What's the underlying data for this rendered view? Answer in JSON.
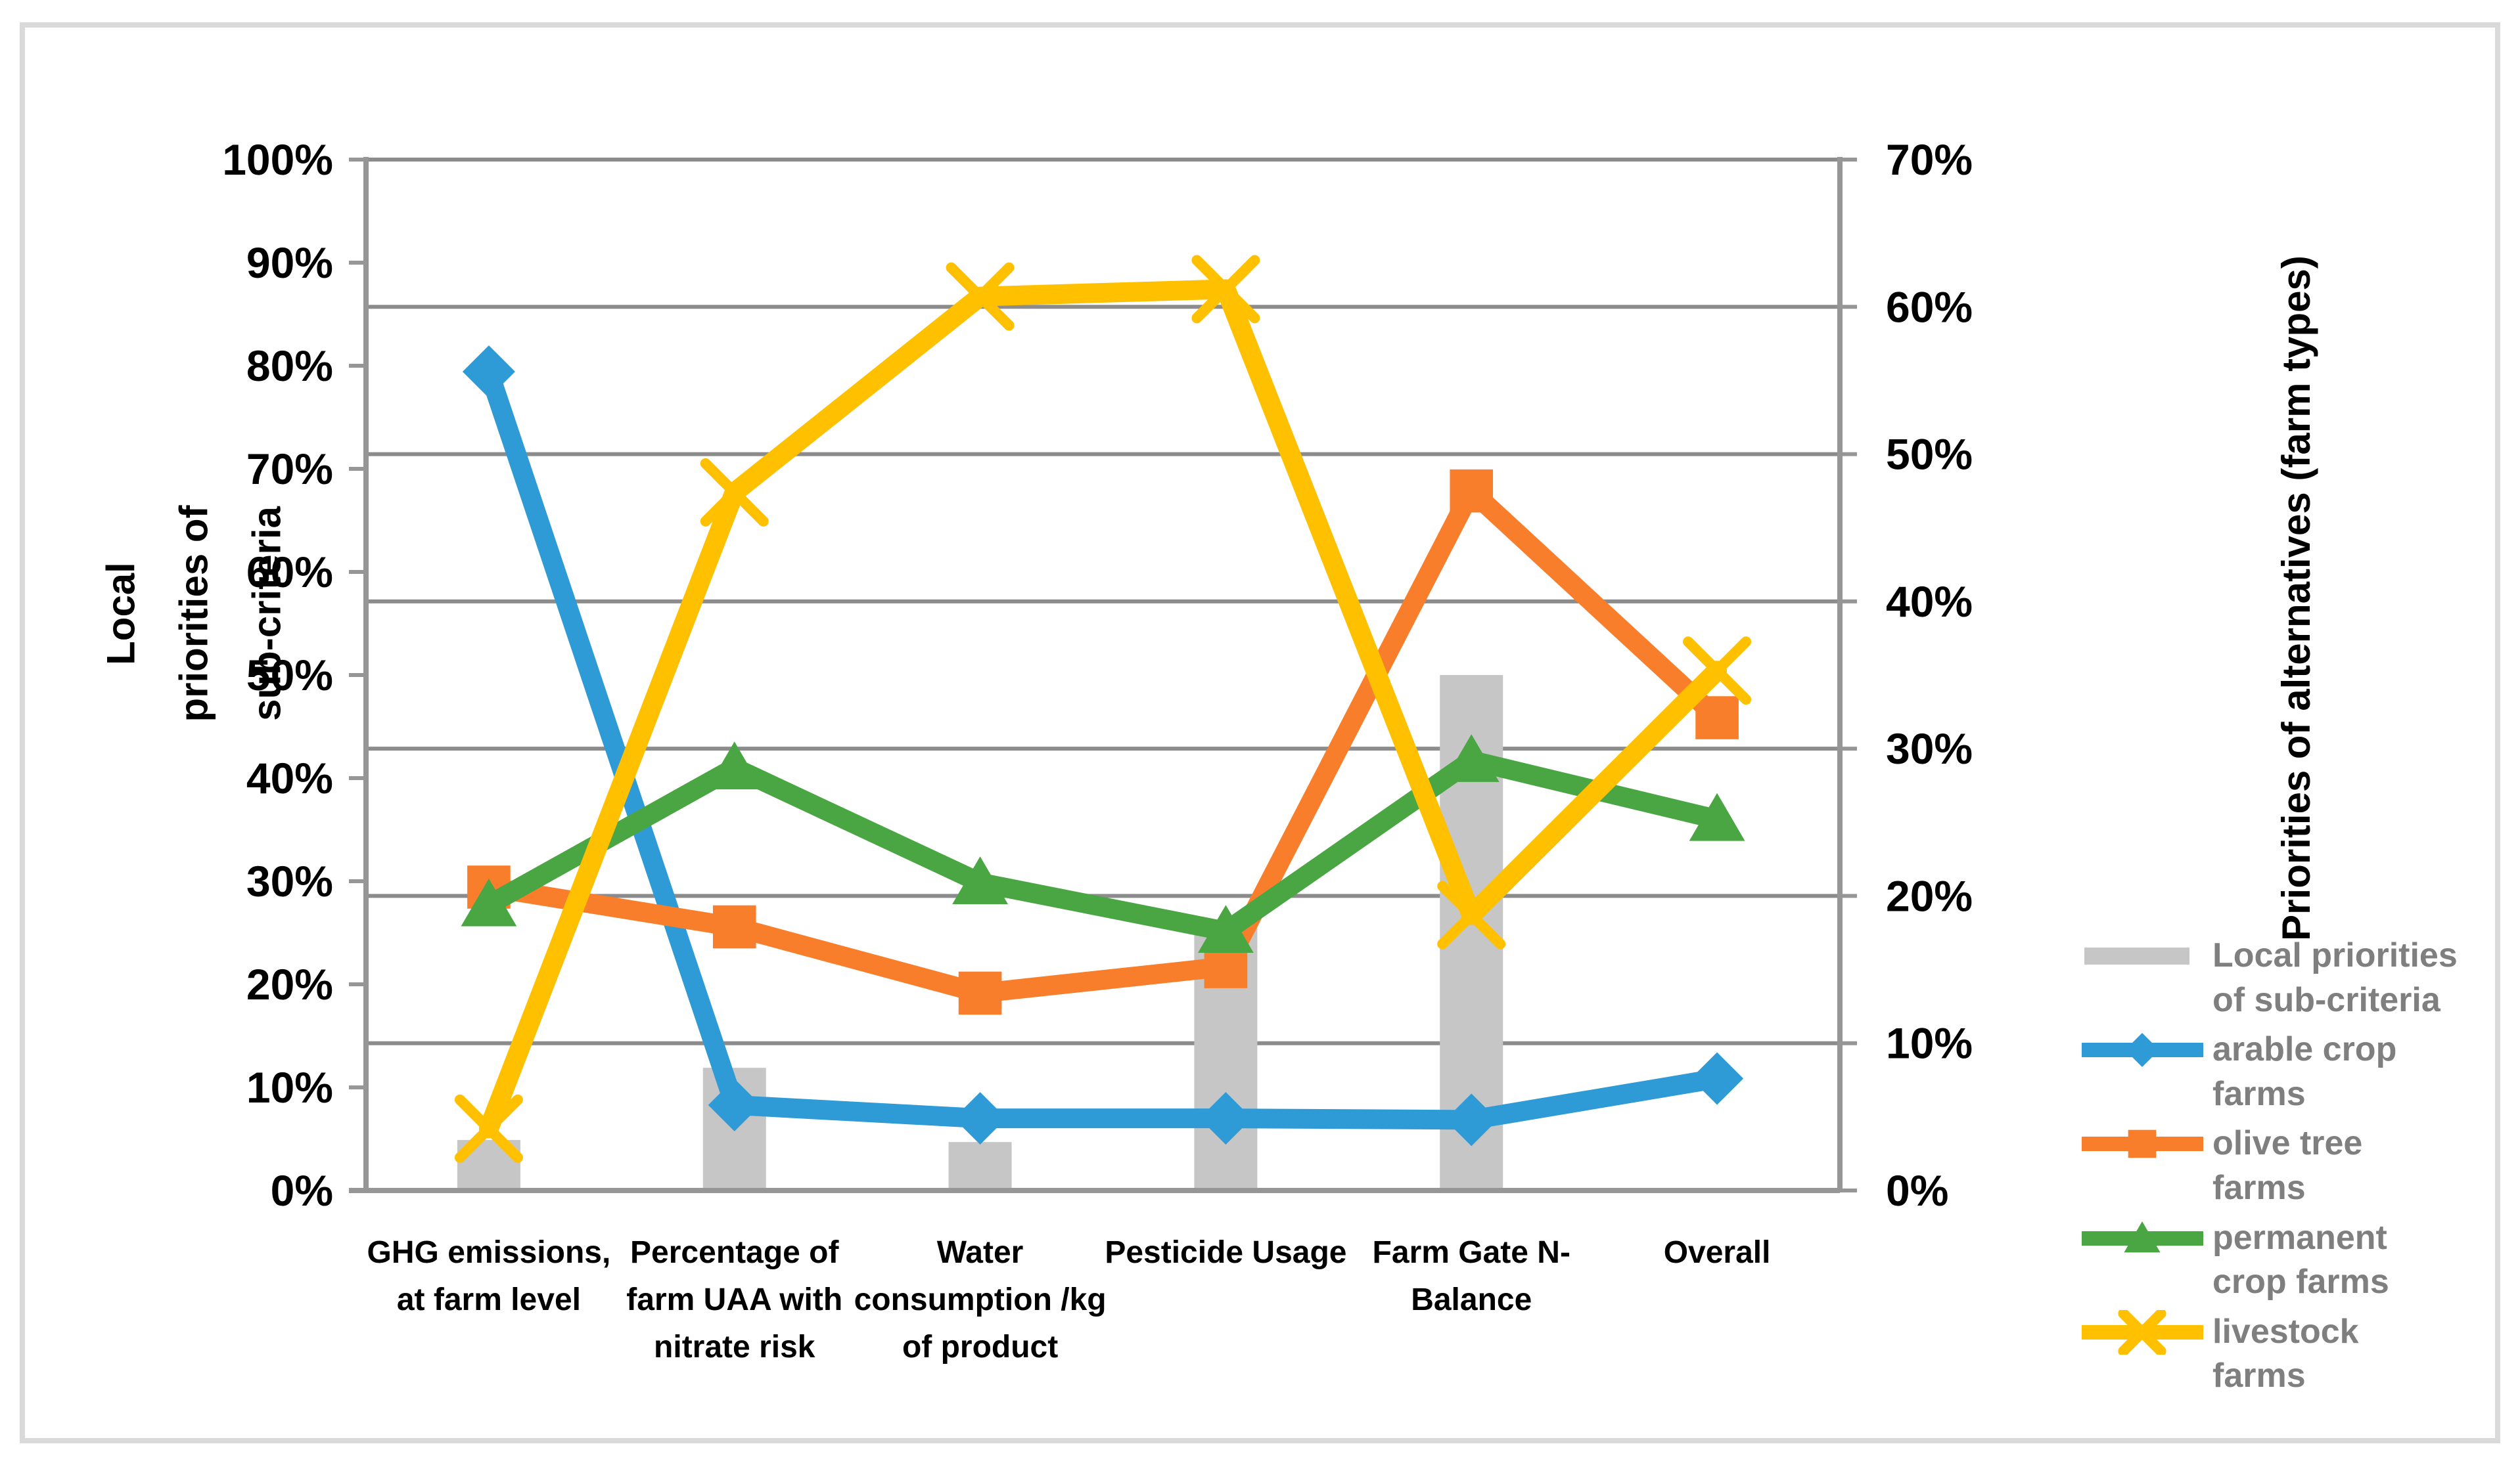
{
  "figure": {
    "frame_color": "#DADADA",
    "background": "#FFFFFF"
  },
  "chart_data": {
    "type": "combo-bar-line",
    "title": "",
    "categories": [
      "GHG emissions, at farm level",
      "Percentage of farm UAA with nitrate risk",
      "Water consumption /kg of product",
      "Pesticide Usage",
      "Farm Gate N-Balance",
      "Overall"
    ],
    "categories_wrapped": [
      [
        "GHG emissions,",
        "at farm level"
      ],
      [
        "Percentage of",
        "farm UAA with",
        "nitrate risk"
      ],
      [
        "Water",
        "consumption /kg",
        "of product"
      ],
      [
        "Pesticide Usage"
      ],
      [
        "Farm Gate N-",
        "Balance"
      ],
      [
        "Overall"
      ]
    ],
    "left_axis": {
      "title": "Local priorities of sub-criteria",
      "title_lines": "Local\npriorities of\nsub-criteria",
      "min": 0,
      "max": 100,
      "tick_step": 10,
      "ticks": [
        "0%",
        "10%",
        "20%",
        "30%",
        "40%",
        "50%",
        "60%",
        "70%",
        "80%",
        "90%",
        "100%"
      ]
    },
    "right_axis": {
      "title": "Priorities of alternatives (farm types)",
      "min": 0,
      "max": 70,
      "tick_step": 10,
      "ticks": [
        "0%",
        "10%",
        "20%",
        "30%",
        "40%",
        "50%",
        "60%",
        "70%"
      ],
      "gridlines": true
    },
    "grid_color": "#8C8C8C",
    "axis_color": "#969696",
    "bar_series": {
      "name": "Local priorities of sub-criteria",
      "axis": "left",
      "color": "#C6C6C6",
      "values": [
        4.9,
        11.9,
        4.7,
        25.5,
        50.0,
        null
      ]
    },
    "line_series": [
      {
        "name": "arable crop farms",
        "axis": "right",
        "color": "#2E9BD6",
        "marker": "diamond",
        "values": [
          55.6,
          5.8,
          4.9,
          4.9,
          4.8,
          7.6
        ]
      },
      {
        "name": "olive tree farms",
        "axis": "right",
        "color": "#F97E2B",
        "marker": "square",
        "values": [
          20.6,
          17.9,
          13.4,
          15.2,
          47.5,
          32.1
        ]
      },
      {
        "name": "permanent crop farms",
        "axis": "right",
        "color": "#4AA642",
        "marker": "triangle",
        "values": [
          19.4,
          28.7,
          20.9,
          17.6,
          29.2,
          25.2
        ]
      },
      {
        "name": "livestock farms",
        "axis": "right",
        "color": "#FFC000",
        "marker": "x",
        "values": [
          4.2,
          47.4,
          60.7,
          61.2,
          18.7,
          35.3
        ]
      }
    ]
  },
  "legend": {
    "text_color": "#7F7F7F",
    "items": [
      {
        "label": "Local priorities\nof sub-criteria",
        "swatch": "bar"
      },
      {
        "label": "arable crop\nfarms",
        "swatch": "line-0"
      },
      {
        "label": "olive tree\nfarms",
        "swatch": "line-1"
      },
      {
        "label": "permanent\ncrop farms",
        "swatch": "line-2"
      },
      {
        "label": "livestock\nfarms",
        "swatch": "line-3"
      }
    ]
  }
}
